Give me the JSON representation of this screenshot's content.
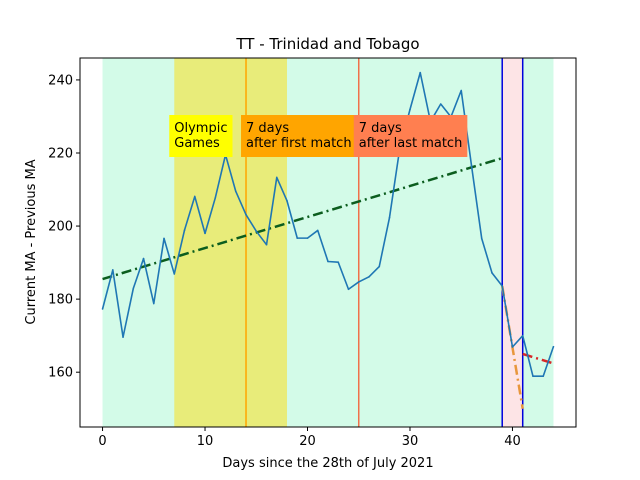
{
  "chart_data": {
    "type": "line",
    "title": "TT - Trinidad and Tobago",
    "xlabel": "Days since the 28th of July 2021",
    "ylabel": "Current MA - Previous MA",
    "xlim": [
      -2.2,
      46.2
    ],
    "ylim": [
      145,
      246
    ],
    "xticks": [
      0,
      10,
      20,
      30,
      40
    ],
    "yticks": [
      160,
      180,
      200,
      220,
      240
    ],
    "series": [
      {
        "color": "#1f77b4",
        "x": [
          0,
          1,
          2,
          3,
          4,
          5,
          6,
          7,
          8,
          9,
          10,
          11,
          12,
          13,
          14,
          15,
          16,
          17,
          18,
          19,
          20,
          21,
          22,
          23,
          24,
          25,
          26,
          27,
          28,
          29,
          30,
          31,
          32,
          33,
          34,
          35,
          36,
          37,
          38,
          39,
          40,
          41,
          42,
          43,
          44
        ],
        "values": [
          177.3,
          188,
          169.6,
          182.9,
          191.1,
          178.8,
          196.6,
          186.9,
          198.9,
          208.1,
          198,
          207.7,
          219.5,
          209.5,
          203.1,
          198.6,
          194.9,
          213.3,
          206.9,
          196.7,
          196.7,
          198.8,
          190.3,
          190.1,
          182.7,
          184.7,
          186.1,
          188.9,
          202.3,
          221.2,
          231.9,
          242,
          228.6,
          233.4,
          229.9,
          237.1,
          216.6,
          196.6,
          187.2,
          183.6,
          166.9,
          170,
          158.9,
          158.9,
          167
        ]
      }
    ],
    "trend_lines": [
      {
        "style": "dash-dot",
        "color": "#0b5d1e",
        "x": [
          0,
          39
        ],
        "values": [
          185.5,
          218.6
        ]
      },
      {
        "style": "dash-dot",
        "color": "#e8963c",
        "x": [
          39,
          41
        ],
        "values": [
          183.6,
          150
        ]
      },
      {
        "style": "dash-dot",
        "color": "#d62728",
        "x": [
          41,
          44
        ],
        "values": [
          165,
          162.4
        ]
      }
    ],
    "bands": [
      {
        "x": [
          0,
          44
        ],
        "color": "#d3fbe8"
      },
      {
        "x": [
          7,
          18
        ],
        "color": "#e8ec7a"
      },
      {
        "x": [
          39,
          41
        ],
        "color": "#fde4e6"
      }
    ],
    "vlines": [
      {
        "x": 14,
        "color": "#ffa500"
      },
      {
        "x": 25,
        "color": "#f0704a"
      },
      {
        "x": 39,
        "color": "#0000dd"
      },
      {
        "x": 41,
        "color": "#0000dd"
      }
    ],
    "annotations": [
      {
        "x": 7,
        "line1": "Olympic",
        "line2": "Games",
        "bg": "#ffff00"
      },
      {
        "x": 14,
        "line1": "7 days",
        "line2": "after first match",
        "bg": "#ffa500"
      },
      {
        "x": 25,
        "line1": "7 days",
        "line2": "after last match",
        "bg": "#ff7f50"
      }
    ]
  }
}
